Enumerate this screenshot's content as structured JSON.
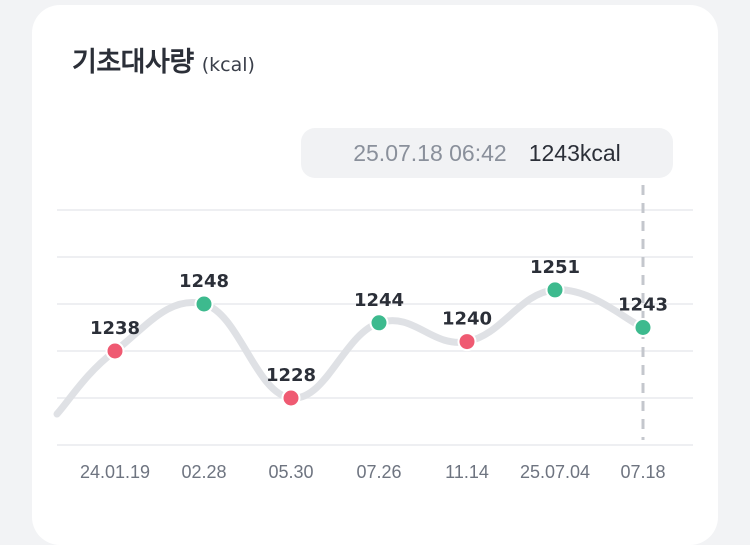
{
  "card": {
    "title": "기초대사량",
    "unit": "(kcal)"
  },
  "tooltip": {
    "time": "25.07.18 06:42",
    "value": "1243kcal"
  },
  "chart_data": {
    "type": "line",
    "title": "기초대사량",
    "ylabel": "(kcal)",
    "x": [
      "24.01.19",
      "02.28",
      "05.30",
      "07.26",
      "11.14",
      "25.07.04",
      "07.18"
    ],
    "values": [
      1238,
      1248,
      1228,
      1244,
      1240,
      1251,
      1243
    ],
    "point_status": [
      "low",
      "normal",
      "low",
      "normal",
      "low",
      "normal",
      "normal"
    ],
    "ylim": [
      1218,
      1268
    ],
    "grid": true,
    "selected_index": 6
  },
  "colors": {
    "line": "#dfe1e5",
    "normal": "#3dba8e",
    "low": "#ef5a72",
    "grid": "#e9eaed",
    "cursor": "#c4c7cd",
    "axis_text": "#6e7480",
    "label_text": "#2b2f38"
  }
}
